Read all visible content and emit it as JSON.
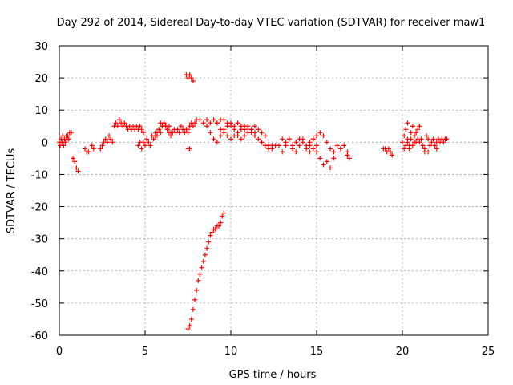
{
  "chart_data": {
    "type": "scatter",
    "title": "Day 292 of 2014, Sidereal Day-to-day VTEC variation (SDTVAR) for receiver maw1",
    "xlabel": "GPS time / hours",
    "ylabel": "SDTVAR / TECUs",
    "xlim": [
      0,
      25
    ],
    "ylim": [
      -60,
      30
    ],
    "xticks": [
      0,
      5,
      10,
      15,
      20,
      25
    ],
    "yticks": [
      -60,
      -50,
      -40,
      -30,
      -20,
      -10,
      0,
      10,
      20,
      30
    ],
    "grid": true,
    "marker": "+",
    "color": "#ff0000",
    "series": [
      {
        "name": "SDTVAR",
        "segments": [
          {
            "x": [
              0.0,
              0.1,
              0.2,
              0.3,
              0.4,
              0.5,
              0.6,
              0.7
            ],
            "y": [
              0,
              1,
              2,
              1,
              2,
              2,
              3,
              3
            ]
          },
          {
            "x": [
              0.05,
              0.15,
              0.25,
              0.35,
              0.45,
              0.55
            ],
            "y": [
              -1,
              0,
              -1,
              0,
              1,
              1
            ]
          },
          {
            "x": [
              0.8,
              0.9,
              1.0,
              1.1
            ],
            "y": [
              -5,
              -6,
              -8,
              -9
            ]
          },
          {
            "x": [
              1.5,
              1.6,
              1.7
            ],
            "y": [
              -2,
              -3,
              -3
            ]
          },
          {
            "x": [
              1.9,
              2.0
            ],
            "y": [
              -1,
              -2
            ]
          },
          {
            "x": [
              2.4,
              2.5,
              2.6,
              2.7,
              2.8,
              2.9,
              3.0,
              3.1,
              3.2,
              3.3,
              3.4,
              3.5,
              3.6,
              3.7,
              3.8,
              3.9,
              4.0,
              4.1,
              4.2,
              4.3,
              4.4,
              4.5,
              4.6,
              4.7,
              4.8,
              4.9
            ],
            "y": [
              -2,
              -1,
              0,
              1,
              0,
              2,
              1,
              0,
              5,
              6,
              5,
              7,
              6,
              5,
              6,
              5,
              4,
              5,
              4,
              5,
              4,
              5,
              4,
              5,
              4,
              3
            ]
          },
          {
            "x": [
              4.6,
              4.7,
              4.8,
              4.9,
              5.0,
              5.1,
              5.2,
              5.3,
              5.4,
              5.5,
              5.6,
              5.7,
              5.8,
              5.9,
              6.0,
              6.1,
              6.2,
              6.3,
              6.4,
              6.5,
              6.6,
              6.7,
              6.8,
              6.9,
              7.0,
              7.1,
              7.2,
              7.3,
              7.4,
              7.5
            ],
            "y": [
              -1,
              0,
              -2,
              0,
              -1,
              1,
              0,
              -1,
              2,
              1,
              3,
              2,
              4,
              3,
              5,
              6,
              5,
              4,
              3,
              2,
              3,
              4,
              3,
              4,
              3,
              5,
              4,
              3,
              4,
              3
            ]
          },
          {
            "x": [
              5.6,
              5.7,
              5.8,
              5.9,
              6.0,
              6.1,
              6.2,
              6.3,
              6.4,
              6.5
            ],
            "y": [
              2,
              3,
              4,
              6,
              5,
              6,
              5,
              4,
              5,
              3
            ]
          },
          {
            "x": [
              7.5,
              7.6,
              7.7,
              7.8,
              7.9,
              8.0,
              8.2,
              8.4,
              8.6,
              8.8,
              9.0,
              9.2,
              9.4,
              9.6,
              9.8,
              10.0,
              10.2,
              10.4,
              10.6,
              10.8,
              11.0,
              11.2,
              11.4,
              11.6,
              11.8,
              12.0
            ],
            "y": [
              4,
              5,
              6,
              5,
              6,
              7,
              7,
              6,
              7,
              6,
              7,
              6,
              7,
              7,
              5,
              6,
              5,
              6,
              5,
              4,
              5,
              4,
              5,
              4,
              3,
              2
            ]
          },
          {
            "x": [
              8.6,
              8.8,
              9.0,
              9.2,
              9.4,
              9.6,
              9.8,
              10.0,
              10.2,
              10.4,
              10.6,
              10.8,
              11.0,
              11.2,
              11.4
            ],
            "y": [
              5,
              3,
              1,
              0,
              2,
              4,
              6,
              5,
              4,
              2,
              1,
              2,
              3,
              4,
              3
            ]
          },
          {
            "x": [
              9.2,
              9.4,
              9.6,
              9.8,
              10.0,
              10.2,
              10.4,
              10.6,
              10.8,
              11.0,
              11.2,
              11.4,
              11.6,
              11.8,
              12.0,
              12.2,
              12.4
            ],
            "y": [
              6,
              4,
              3,
              2,
              1,
              2,
              3,
              4,
              5,
              4,
              3,
              2,
              1,
              0,
              -1,
              -2,
              -1
            ]
          },
          {
            "x": [
              7.4,
              7.5,
              7.6,
              7.7,
              7.8
            ],
            "y": [
              21,
              20,
              21,
              20,
              19
            ]
          },
          {
            "x": [
              7.5,
              7.6
            ],
            "y": [
              -2,
              -2
            ]
          },
          {
            "x": [
              7.5,
              7.6,
              7.7,
              7.8,
              7.9,
              8.0,
              8.1,
              8.2,
              8.3,
              8.4,
              8.5,
              8.6,
              8.7,
              8.8,
              8.9,
              9.0,
              9.1,
              9.2,
              9.3,
              9.4,
              9.5,
              9.6
            ],
            "y": [
              -58,
              -57,
              -55,
              -52,
              -49,
              -46,
              -43,
              -41,
              -39,
              -37,
              -35,
              -33,
              -31,
              -29,
              -28,
              -27,
              -27,
              -26,
              -26,
              -25,
              -23,
              -22
            ]
          },
          {
            "x": [
              12.0,
              12.2,
              12.4,
              12.6,
              12.8,
              13.0,
              13.2,
              13.4,
              13.6,
              13.8,
              14.0,
              14.2,
              14.4,
              14.6,
              14.8,
              15.0
            ],
            "y": [
              -1,
              -1,
              -2,
              -1,
              -1,
              -3,
              -1,
              1,
              -2,
              -3,
              -1,
              1,
              -1,
              -3,
              -2,
              -1
            ]
          },
          {
            "x": [
              13.0,
              13.2,
              13.4,
              13.6,
              13.8,
              14.0,
              14.2,
              14.4,
              14.6,
              14.8,
              15.0,
              15.2,
              15.4,
              15.6,
              15.8,
              16.0
            ],
            "y": [
              1,
              0,
              1,
              -1,
              0,
              1,
              0,
              -2,
              0,
              1,
              -3,
              -5,
              -7,
              -6,
              -8,
              -5
            ]
          },
          {
            "x": [
              14.6,
              14.8,
              15.0,
              15.2,
              15.4,
              15.6,
              15.8,
              16.0,
              16.2,
              16.4,
              16.6,
              16.8
            ],
            "y": [
              -1,
              1,
              2,
              3,
              2,
              0,
              -2,
              -3,
              -1,
              -2,
              -1,
              -3
            ]
          },
          {
            "x": [
              16.8,
              16.9
            ],
            "y": [
              -4,
              -5
            ]
          },
          {
            "x": [
              18.9,
              19.0,
              19.1,
              19.2,
              19.3,
              19.4
            ],
            "y": [
              -2,
              -2,
              -3,
              -2,
              -3,
              -4
            ]
          },
          {
            "x": [
              20.0,
              20.1,
              20.2,
              20.3,
              20.4,
              20.5,
              20.6,
              20.7,
              20.8,
              20.9,
              21.0
            ],
            "y": [
              0,
              2,
              4,
              1,
              -1,
              3,
              5,
              2,
              0,
              1,
              5
            ]
          },
          {
            "x": [
              20.1,
              20.2,
              20.3,
              20.4,
              20.5,
              20.6,
              20.7,
              20.8
            ],
            "y": [
              -2,
              -1,
              0,
              -2,
              1,
              -1,
              0,
              3
            ]
          },
          {
            "x": [
              20.3,
              20.9
            ],
            "y": [
              6,
              4
            ]
          },
          {
            "x": [
              21.0,
              21.1,
              21.2,
              21.3,
              21.4,
              21.5,
              21.6,
              21.7,
              21.8,
              21.9,
              22.0
            ],
            "y": [
              0,
              1,
              -1,
              -2,
              2,
              1,
              -1,
              0,
              1,
              -1,
              -2
            ]
          },
          {
            "x": [
              21.3,
              21.5
            ],
            "y": [
              -3,
              -3
            ]
          },
          {
            "x": [
              22.0,
              22.1,
              22.2,
              22.3,
              22.4,
              22.5,
              22.6
            ],
            "y": [
              0,
              1,
              0,
              1,
              0,
              1,
              1
            ]
          }
        ]
      }
    ]
  }
}
